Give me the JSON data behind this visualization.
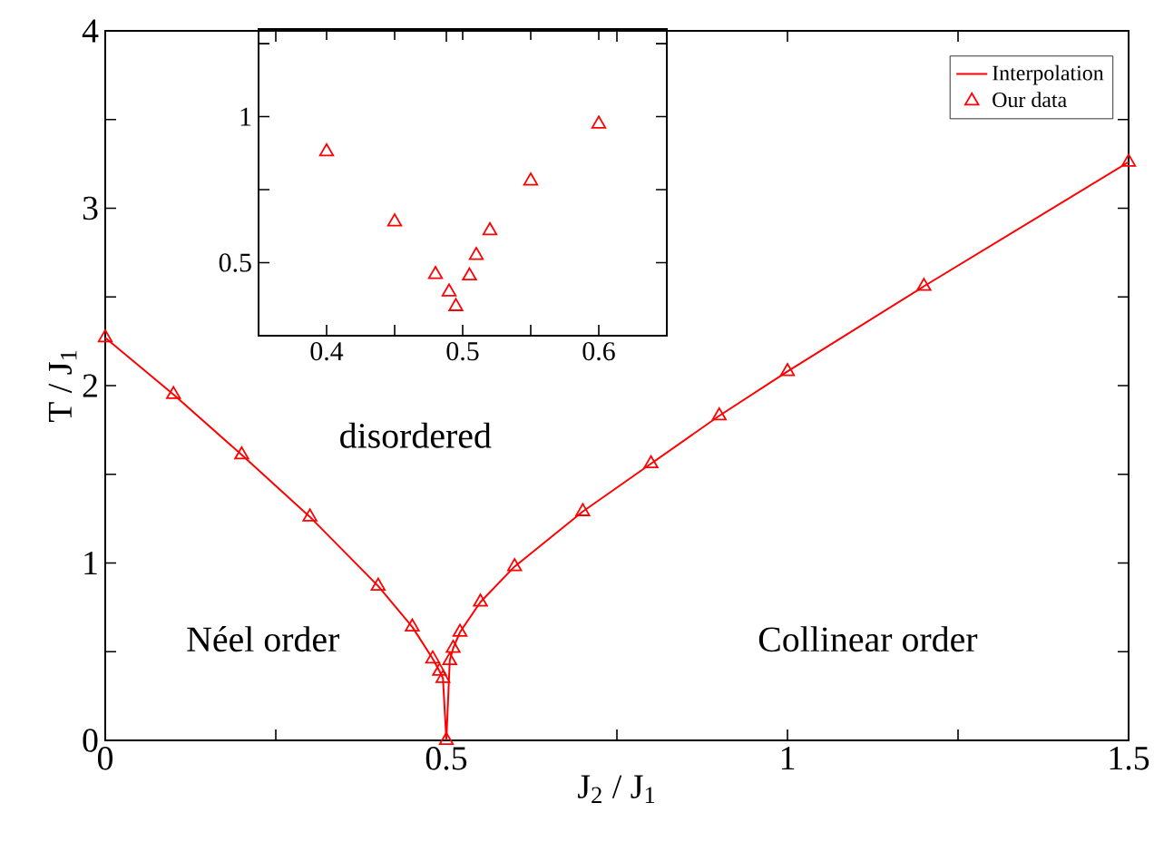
{
  "chart_data": [
    {
      "type": "line",
      "xlabel": "J$_{2}$ / J$_{1}$",
      "ylabel": "T / J$_{1}$",
      "x": [
        0,
        0.1,
        0.2,
        0.3,
        0.4,
        0.45,
        0.48,
        0.49,
        0.495,
        0.5,
        0.505,
        0.51,
        0.52,
        0.55,
        0.6,
        0.7,
        0.8,
        0.9,
        1.0,
        1.2,
        1.5
      ],
      "series": [
        {
          "name": "Interpolation",
          "marker": "none",
          "color": "#ff0000",
          "values": [
            2.27,
            1.95,
            1.61,
            1.26,
            0.87,
            0.64,
            0.46,
            0.39,
            0.35,
            0,
            0.45,
            0.52,
            0.61,
            0.78,
            0.98,
            1.29,
            1.56,
            1.83,
            2.08,
            2.56,
            3.26
          ]
        },
        {
          "name": "Our data",
          "type": "scatter",
          "marker": "triangle",
          "color": "#ff0000",
          "values": [
            2.27,
            1.95,
            1.61,
            1.26,
            0.87,
            0.64,
            0.46,
            0.39,
            0.35,
            0,
            0.45,
            0.52,
            0.61,
            0.78,
            0.98,
            1.29,
            1.56,
            1.83,
            2.08,
            2.56,
            3.26
          ]
        }
      ],
      "xlim": [
        0,
        1.5
      ],
      "ylim": [
        0,
        4
      ],
      "xticks": [
        0,
        {
          "value": 0.25,
          "label": null
        },
        0.5,
        {
          "value": 0.75,
          "label": null
        },
        1,
        {
          "value": 1.25,
          "label": null
        },
        1.5
      ],
      "yticks": [
        0,
        {
          "value": 0.5,
          "label": null
        },
        1,
        {
          "value": 1.5,
          "label": null
        },
        2,
        {
          "value": 2.5,
          "label": null
        },
        3,
        {
          "value": 3.5,
          "label": null
        },
        4
      ],
      "legend": "top right",
      "annotations": [
        "disordered",
        "Néel order",
        "Collinear order"
      ]
    },
    {
      "type": "scatter",
      "x": [
        0.4,
        0.45,
        0.48,
        0.49,
        0.495,
        0.505,
        0.51,
        0.52,
        0.55,
        0.6
      ],
      "series": [
        {
          "marker": "triangle",
          "color": "#ff0000",
          "values": [
            0.88,
            0.64,
            0.46,
            0.4,
            0.35,
            0.455,
            0.525,
            0.61,
            0.78,
            0.975
          ]
        }
      ],
      "xlim": [
        0.35,
        0.65
      ],
      "ylim": [
        0.25,
        1.3
      ],
      "xticks": [
        0.4,
        {
          "value": 0.45,
          "label": null
        },
        0.5,
        {
          "value": 0.55,
          "label": null
        },
        0.6
      ],
      "yticks": [
        {
          "value": 0.25,
          "label": null
        },
        0.5,
        {
          "value": 0.75,
          "label": null
        },
        1,
        {
          "value": 1.25,
          "label": null
        }
      ]
    }
  ]
}
